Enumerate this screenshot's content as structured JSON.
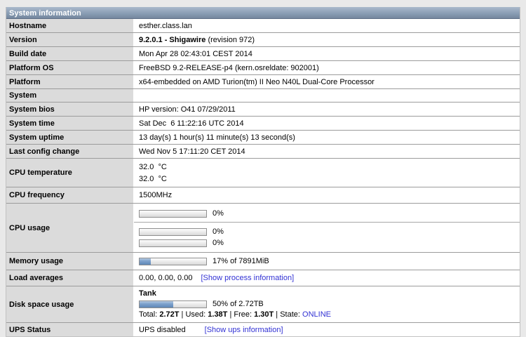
{
  "colors": {
    "page_background": "#e9e9e9",
    "header_gradient_top": "#aab9cb",
    "header_gradient_bottom": "#74879e",
    "label_cell_background": "#dbdbdb",
    "row_border": "#9c9c9c",
    "link_color": "#3232d4",
    "bar_fill": "#6f97c5"
  },
  "header": {
    "title": "System information"
  },
  "rows": {
    "hostname": {
      "label": "Hostname",
      "value": "esther.class.lan"
    },
    "version": {
      "label": "Version",
      "value_bold": "9.2.0.1 - Shigawire",
      "value_rest": " (revision 972)"
    },
    "build_date": {
      "label": "Build date",
      "value": "Mon Apr 28 02:43:01 CEST 2014"
    },
    "platform_os": {
      "label": "Platform OS",
      "value": "FreeBSD 9.2-RELEASE-p4 (kern.osreldate: 902001)"
    },
    "platform": {
      "label": "Platform",
      "value": "x64-embedded on AMD Turion(tm) II Neo N40L Dual-Core Processor"
    },
    "system": {
      "label": "System",
      "value": ""
    },
    "system_bios": {
      "label": "System bios",
      "value": "HP version: O41 07/29/2011"
    },
    "system_time": {
      "label": "System time",
      "value": "Sat Dec  6 11:22:16 UTC 2014"
    },
    "system_uptime": {
      "label": "System uptime",
      "value": "13 day(s) 1 hour(s) 11 minute(s) 13 second(s)"
    },
    "last_config_change": {
      "label": "Last config change",
      "value": "Wed Nov 5 17:11:20 CET 2014"
    },
    "cpu_temperature": {
      "label": "CPU temperature",
      "lines": [
        "32.0  °C",
        "32.0  °C"
      ]
    },
    "cpu_frequency": {
      "label": "CPU frequency",
      "value": "1500MHz"
    },
    "cpu_usage": {
      "label": "CPU usage",
      "total": {
        "percent": 0,
        "text": "0%"
      },
      "cores": [
        {
          "percent": 0,
          "text": "0%"
        },
        {
          "percent": 0,
          "text": "0%"
        }
      ]
    },
    "memory_usage": {
      "label": "Memory usage",
      "percent": 17,
      "text": "17% of 7891MiB"
    },
    "load_averages": {
      "label": "Load averages",
      "value": "0.00, 0.00, 0.00",
      "link": "[Show process information]"
    },
    "disk_space_usage": {
      "label": "Disk space usage",
      "pool_name": "Tank",
      "percent": 50,
      "text": "50% of 2.72TB",
      "totals": {
        "t1": "Total: ",
        "total_value": "2.72T",
        "t2": " | Used: ",
        "used_value": "1.38T",
        "t3": " | Free: ",
        "free_value": "1.30T",
        "t4": " | State: ",
        "state_value": "ONLINE"
      }
    },
    "ups_status": {
      "label": "UPS Status",
      "value": "UPS disabled",
      "link": "[Show ups information]"
    }
  }
}
